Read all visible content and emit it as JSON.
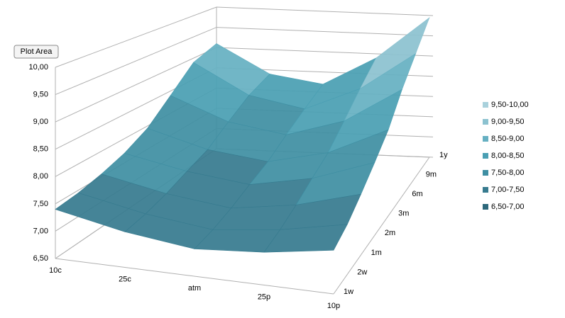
{
  "chart_data": {
    "type": "surface",
    "tooltip": "Plot Area",
    "categories": [
      "10c",
      "25c",
      "atm",
      "25p",
      "10p"
    ],
    "series": [
      {
        "name": "1w",
        "values": [
          7.4,
          7.15,
          7.0,
          7.1,
          7.3
        ]
      },
      {
        "name": "2w",
        "values": [
          7.45,
          7.2,
          7.05,
          7.2,
          7.45
        ]
      },
      {
        "name": "1m",
        "values": [
          7.55,
          7.3,
          7.15,
          7.35,
          7.7
        ]
      },
      {
        "name": "2m",
        "values": [
          7.7,
          7.45,
          7.3,
          7.55,
          8.0
        ]
      },
      {
        "name": "3m",
        "values": [
          7.95,
          7.6,
          7.45,
          7.75,
          8.35
        ]
      },
      {
        "name": "6m",
        "values": [
          8.4,
          7.9,
          7.7,
          8.1,
          8.9
        ]
      },
      {
        "name": "9m",
        "values": [
          8.9,
          8.2,
          7.95,
          8.5,
          9.4
        ]
      },
      {
        "name": "1y",
        "values": [
          9.1,
          8.4,
          8.2,
          8.9,
          9.95
        ]
      }
    ],
    "zlim": [
      6.5,
      10
    ],
    "zticks": [
      {
        "value": 6.5,
        "label": "6,50"
      },
      {
        "value": 7,
        "label": "7,00"
      },
      {
        "value": 7.5,
        "label": "7,50"
      },
      {
        "value": 8,
        "label": "8,00"
      },
      {
        "value": 8.5,
        "label": "8,50"
      },
      {
        "value": 9,
        "label": "9,00"
      },
      {
        "value": 9.5,
        "label": "9,50"
      },
      {
        "value": 10,
        "label": "10,00"
      }
    ],
    "bands": [
      {
        "range": [
          9.5,
          10
        ],
        "label": "9,50-10,00",
        "color": "#a9d1dc"
      },
      {
        "range": [
          9,
          9.5
        ],
        "label": "9,00-9,50",
        "color": "#8cc2d0"
      },
      {
        "range": [
          8.5,
          9
        ],
        "label": "8,50-9,00",
        "color": "#66b0c2"
      },
      {
        "range": [
          8,
          8.5
        ],
        "label": "8,00-8,50",
        "color": "#4a9fb3"
      },
      {
        "range": [
          7.5,
          8
        ],
        "label": "7,50-8,00",
        "color": "#3f8fa3"
      },
      {
        "range": [
          7,
          7.5
        ],
        "label": "7,00-7,50",
        "color": "#377b8f"
      },
      {
        "range": [
          6.5,
          7
        ],
        "label": "6,50-7,00",
        "color": "#2d687b"
      }
    ]
  }
}
